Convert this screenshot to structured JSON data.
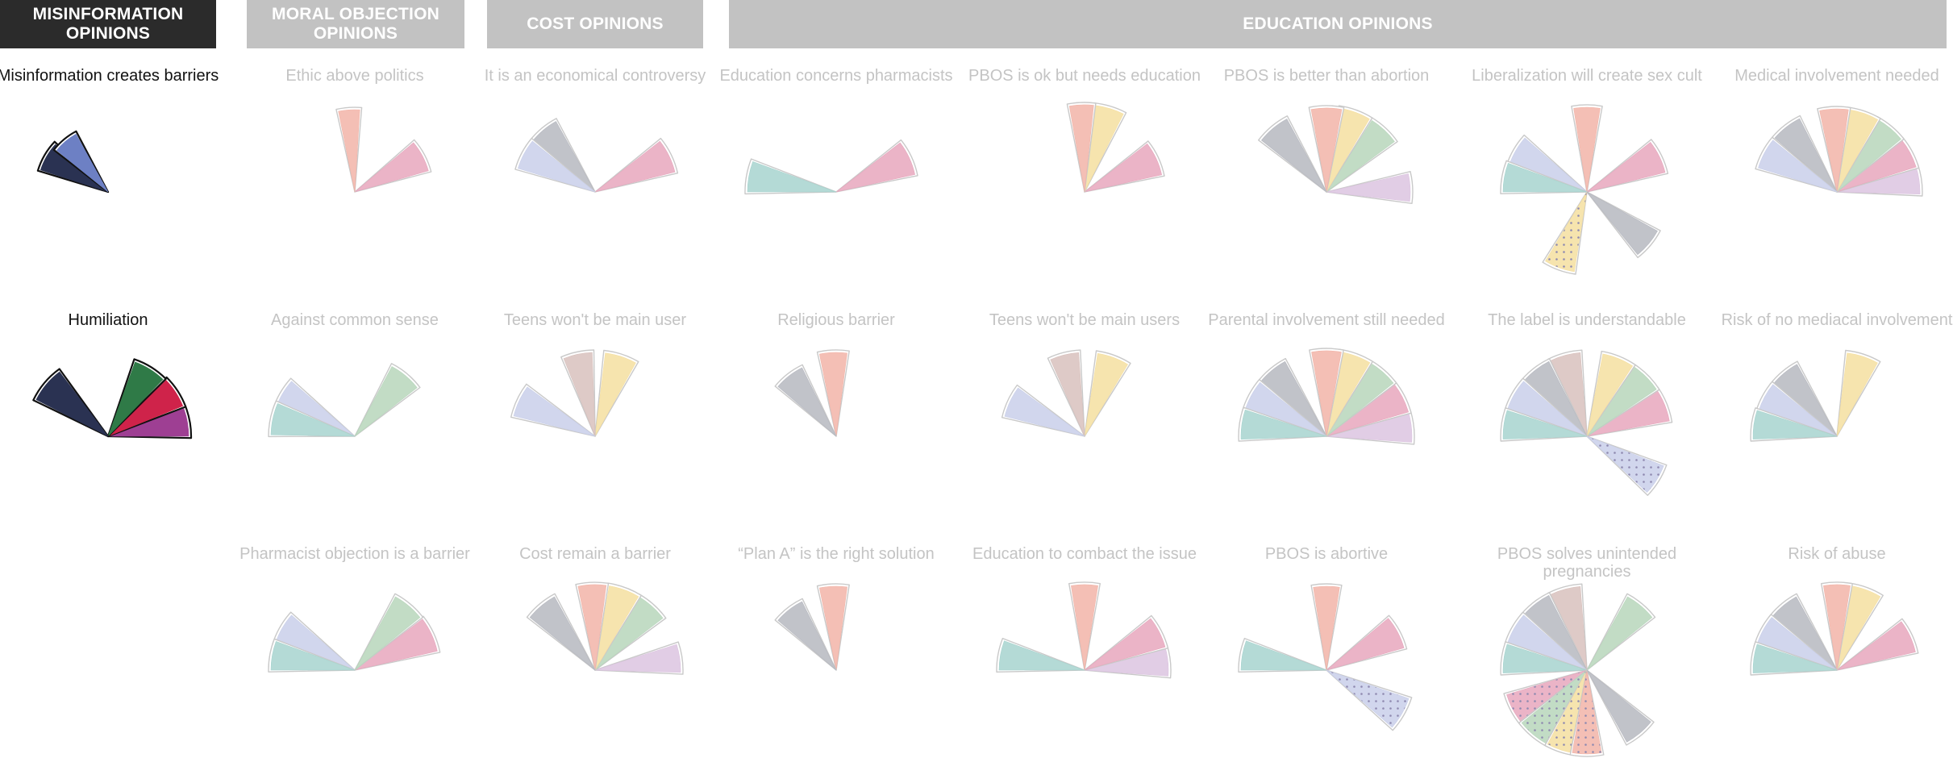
{
  "headers": [
    {
      "key": "misinformation",
      "label": "MISINFORMATION OPINIONS",
      "style": "dark"
    },
    {
      "key": "moral",
      "label": "MORAL OBJECTION OPINIONS",
      "style": "light"
    },
    {
      "key": "cost",
      "label": "COST OPINIONS",
      "style": "light"
    },
    {
      "key": "education",
      "label": "EDUCATION OPINIONS",
      "style": "light"
    }
  ],
  "colors": {
    "pink": "#e7a7bd",
    "peach": "#f2b4a8",
    "yellow": "#f5dfa0",
    "green": "#b7d6bb",
    "teal": "#a7d4cf",
    "lavender": "#c9cfea",
    "gray": "#b6b8c0",
    "mauve": "#d8c1bd",
    "lilac": "#dcc4e0",
    "navy": "#2a3252",
    "blue": "#6d80c4",
    "darkgreen": "#2f7a47",
    "crimson": "#cf234a",
    "purple": "#9e3f93"
  },
  "glyphs": [
    {
      "label": "Misinformation creates barriers",
      "group": "misinformation",
      "active": true,
      "petals": [
        {
          "color": "navy",
          "dir": 150,
          "w": 24,
          "len": 88
        },
        {
          "color": "blue",
          "dir": 130,
          "w": 22,
          "len": 82
        }
      ]
    },
    {
      "label": "Ethic above politics",
      "group": "moral",
      "petals": [
        {
          "color": "pink",
          "dir": 28,
          "w": 24,
          "len": 95
        },
        {
          "color": "peach",
          "dir": 94,
          "w": 15,
          "len": 102
        }
      ]
    },
    {
      "label": "It is an economical controversy",
      "group": "cost",
      "petals": [
        {
          "color": "pink",
          "dir": 26,
          "w": 24,
          "len": 102
        },
        {
          "color": "gray",
          "dir": 130,
          "w": 22,
          "len": 100
        },
        {
          "color": "lavender",
          "dir": 152,
          "w": 22,
          "len": 100
        }
      ]
    },
    {
      "label": "Education concerns pharmacists",
      "group": "education",
      "petals": [
        {
          "color": "pink",
          "dir": 25,
          "w": 25,
          "len": 100
        },
        {
          "color": "teal",
          "dir": 170,
          "w": 20,
          "len": 110
        }
      ]
    },
    {
      "label": "PBOS is ok but needs education",
      "group": "education",
      "petals": [
        {
          "color": "pink",
          "dir": 25,
          "w": 25,
          "len": 98
        },
        {
          "color": "yellow",
          "dir": 73,
          "w": 19,
          "len": 108
        },
        {
          "color": "peach",
          "dir": 92,
          "w": 16,
          "len": 108
        }
      ]
    },
    {
      "label": "PBOS is better than abortion",
      "group": "education",
      "petals": [
        {
          "color": "lilac",
          "dir": 3,
          "w": 19,
          "len": 104
        },
        {
          "color": "green",
          "dir": 47,
          "w": 21,
          "len": 105
        },
        {
          "color": "yellow",
          "dir": 70,
          "w": 21,
          "len": 105
        },
        {
          "color": "peach",
          "dir": 90,
          "w": 21,
          "len": 104
        },
        {
          "color": "gray",
          "dir": 130,
          "w": 23,
          "len": 103
        }
      ]
    },
    {
      "label": "Liberalization will create sex cult",
      "group": "education",
      "petals": [
        {
          "color": "pink",
          "dir": 26,
          "w": 24,
          "len": 100
        },
        {
          "color": "peach",
          "dir": 90,
          "w": 18,
          "len": 105
        },
        {
          "color": "lavender",
          "dir": 150,
          "w": 22,
          "len": 102
        },
        {
          "color": "teal",
          "dir": 170,
          "w": 20,
          "len": 104
        },
        {
          "color": "yellow",
          "dir": 250,
          "w": 22,
          "len": 100,
          "dotted": true
        },
        {
          "color": "gray",
          "dir": 320,
          "w": 22,
          "len": 100
        }
      ]
    },
    {
      "label": "Medical involvement needed",
      "group": "education",
      "petals": [
        {
          "color": "lilac",
          "dir": 8,
          "w": 19,
          "len": 103
        },
        {
          "color": "pink",
          "dir": 28,
          "w": 21,
          "len": 103
        },
        {
          "color": "green",
          "dir": 50,
          "w": 21,
          "len": 103
        },
        {
          "color": "yellow",
          "dir": 71,
          "w": 21,
          "len": 103
        },
        {
          "color": "peach",
          "dir": 92,
          "w": 20,
          "len": 103
        },
        {
          "color": "gray",
          "dir": 128,
          "w": 22,
          "len": 102
        },
        {
          "color": "lavender",
          "dir": 152,
          "w": 22,
          "len": 102
        }
      ]
    },
    {
      "label": "Humiliation",
      "group": "misinformation",
      "active": true,
      "petals": [
        {
          "color": "purple",
          "dir": 10,
          "w": 20,
          "len": 100
        },
        {
          "color": "crimson",
          "dir": 33,
          "w": 22,
          "len": 100
        },
        {
          "color": "darkgreen",
          "dir": 58,
          "w": 24,
          "len": 98
        },
        {
          "color": "navy",
          "dir": 140,
          "w": 26,
          "len": 100
        }
      ]
    },
    {
      "label": "Against common sense",
      "group": "moral",
      "petals": [
        {
          "color": "green",
          "dir": 50,
          "w": 24,
          "len": 98
        },
        {
          "color": "lavender",
          "dir": 150,
          "w": 22,
          "len": 104
        },
        {
          "color": "teal",
          "dir": 168,
          "w": 22,
          "len": 104
        }
      ]
    },
    {
      "label": "Teens won't be main user",
      "group": "cost",
      "petals": [
        {
          "color": "yellow",
          "dir": 72,
          "w": 22,
          "len": 104
        },
        {
          "color": "mauve",
          "dir": 102,
          "w": 20,
          "len": 104
        },
        {
          "color": "lavender",
          "dir": 155,
          "w": 22,
          "len": 104
        }
      ]
    },
    {
      "label": "Religious barrier",
      "group": "education",
      "petals": [
        {
          "color": "peach",
          "dir": 92,
          "w": 19,
          "len": 104
        },
        {
          "color": "gray",
          "dir": 128,
          "w": 23,
          "len": 95
        }
      ]
    },
    {
      "label": "Teens won't be main users",
      "group": "education",
      "petals": [
        {
          "color": "yellow",
          "dir": 70,
          "w": 22,
          "len": 104
        },
        {
          "color": "mauve",
          "dir": 104,
          "w": 20,
          "len": 104
        },
        {
          "color": "lavender",
          "dir": 155,
          "w": 22,
          "len": 102
        }
      ]
    },
    {
      "label": "Parental involvement still needed",
      "group": "education",
      "petals": [
        {
          "color": "lilac",
          "dir": 6,
          "w": 20,
          "len": 106
        },
        {
          "color": "pink",
          "dir": 27,
          "w": 21,
          "len": 106
        },
        {
          "color": "green",
          "dir": 49,
          "w": 21,
          "len": 106
        },
        {
          "color": "yellow",
          "dir": 70,
          "w": 21,
          "len": 106
        },
        {
          "color": "peach",
          "dir": 90,
          "w": 20,
          "len": 106
        },
        {
          "color": "gray",
          "dir": 130,
          "w": 22,
          "len": 106
        },
        {
          "color": "lavender",
          "dir": 152,
          "w": 22,
          "len": 106
        },
        {
          "color": "teal",
          "dir": 172,
          "w": 20,
          "len": 106
        }
      ]
    },
    {
      "label": "The label is understandable",
      "group": "education",
      "petals": [
        {
          "color": "pink",
          "dir": 22,
          "w": 23,
          "len": 104
        },
        {
          "color": "green",
          "dir": 45,
          "w": 22,
          "len": 104
        },
        {
          "color": "yellow",
          "dir": 68,
          "w": 22,
          "len": 104
        },
        {
          "color": "mauve",
          "dir": 105,
          "w": 21,
          "len": 104
        },
        {
          "color": "gray",
          "dir": 128,
          "w": 22,
          "len": 104
        },
        {
          "color": "lavender",
          "dir": 150,
          "w": 22,
          "len": 104
        },
        {
          "color": "teal",
          "dir": 172,
          "w": 20,
          "len": 104
        },
        {
          "color": "lavender",
          "dir": 328,
          "w": 22,
          "len": 102,
          "dotted": true
        }
      ]
    },
    {
      "label": "Risk of no mediacal involvement",
      "group": "education",
      "petals": [
        {
          "color": "yellow",
          "dir": 72,
          "w": 22,
          "len": 104
        },
        {
          "color": "gray",
          "dir": 130,
          "w": 22,
          "len": 102
        },
        {
          "color": "lavender",
          "dir": 152,
          "w": 22,
          "len": 102
        },
        {
          "color": "teal",
          "dir": 172,
          "w": 20,
          "len": 104
        }
      ]
    },
    {
      "label": "Pharmacist objection is a barrier",
      "group": "moral",
      "petals": [
        {
          "color": "pink",
          "dir": 25,
          "w": 24,
          "len": 105
        },
        {
          "color": "green",
          "dir": 50,
          "w": 22,
          "len": 104
        },
        {
          "color": "lavender",
          "dir": 150,
          "w": 22,
          "len": 104
        },
        {
          "color": "teal",
          "dir": 170,
          "w": 20,
          "len": 104
        }
      ]
    },
    {
      "label": "Cost remain a barrier",
      "group": "cost",
      "petals": [
        {
          "color": "lilac",
          "dir": 8,
          "w": 19,
          "len": 106
        },
        {
          "color": "green",
          "dir": 48,
          "w": 21,
          "len": 106
        },
        {
          "color": "yellow",
          "dir": 70,
          "w": 21,
          "len": 106
        },
        {
          "color": "peach",
          "dir": 92,
          "w": 19,
          "len": 106
        },
        {
          "color": "gray",
          "dir": 130,
          "w": 22,
          "len": 104
        }
      ]
    },
    {
      "label": "“Plan A” is the right solution",
      "group": "education",
      "petals": [
        {
          "color": "peach",
          "dir": 92,
          "w": 19,
          "len": 104
        },
        {
          "color": "gray",
          "dir": 128,
          "w": 23,
          "len": 95
        }
      ]
    },
    {
      "label": "Education to combact the issue",
      "group": "education",
      "petals": [
        {
          "color": "lilac",
          "dir": 6,
          "w": 20,
          "len": 104
        },
        {
          "color": "pink",
          "dir": 27,
          "w": 22,
          "len": 104
        },
        {
          "color": "peach",
          "dir": 90,
          "w": 18,
          "len": 106
        },
        {
          "color": "teal",
          "dir": 170,
          "w": 20,
          "len": 106
        }
      ]
    },
    {
      "label": "PBOS is abortive",
      "group": "education",
      "petals": [
        {
          "color": "pink",
          "dir": 28,
          "w": 24,
          "len": 100
        },
        {
          "color": "peach",
          "dir": 90,
          "w": 18,
          "len": 104
        },
        {
          "color": "teal",
          "dir": 170,
          "w": 20,
          "len": 106
        },
        {
          "color": "lavender",
          "dir": 330,
          "w": 22,
          "len": 108,
          "dotted": true
        }
      ]
    },
    {
      "label": "PBOS solves unintended pregnancies",
      "group": "education",
      "petals": [
        {
          "color": "green",
          "dir": 50,
          "w": 22,
          "len": 104
        },
        {
          "color": "mauve",
          "dir": 105,
          "w": 21,
          "len": 104
        },
        {
          "color": "gray",
          "dir": 128,
          "w": 22,
          "len": 104
        },
        {
          "color": "lavender",
          "dir": 150,
          "w": 22,
          "len": 104
        },
        {
          "color": "teal",
          "dir": 172,
          "w": 20,
          "len": 104
        },
        {
          "color": "pink",
          "dir": 208,
          "w": 22,
          "len": 104,
          "dotted": true
        },
        {
          "color": "green",
          "dir": 230,
          "w": 22,
          "len": 104,
          "dotted": true
        },
        {
          "color": "yellow",
          "dir": 252,
          "w": 20,
          "len": 104,
          "dotted": true
        },
        {
          "color": "peach",
          "dir": 270,
          "w": 20,
          "len": 104,
          "dotted": true
        },
        {
          "color": "gray",
          "dir": 310,
          "w": 22,
          "len": 102
        }
      ]
    },
    {
      "label": "Risk of abuse",
      "group": "education",
      "petals": [
        {
          "color": "pink",
          "dir": 25,
          "w": 24,
          "len": 100
        },
        {
          "color": "yellow",
          "dir": 70,
          "w": 21,
          "len": 106
        },
        {
          "color": "peach",
          "dir": 90,
          "w": 18,
          "len": 106
        },
        {
          "color": "gray",
          "dir": 130,
          "w": 22,
          "len": 104
        },
        {
          "color": "lavender",
          "dir": 152,
          "w": 22,
          "len": 104
        },
        {
          "color": "teal",
          "dir": 172,
          "w": 20,
          "len": 104
        }
      ]
    }
  ]
}
